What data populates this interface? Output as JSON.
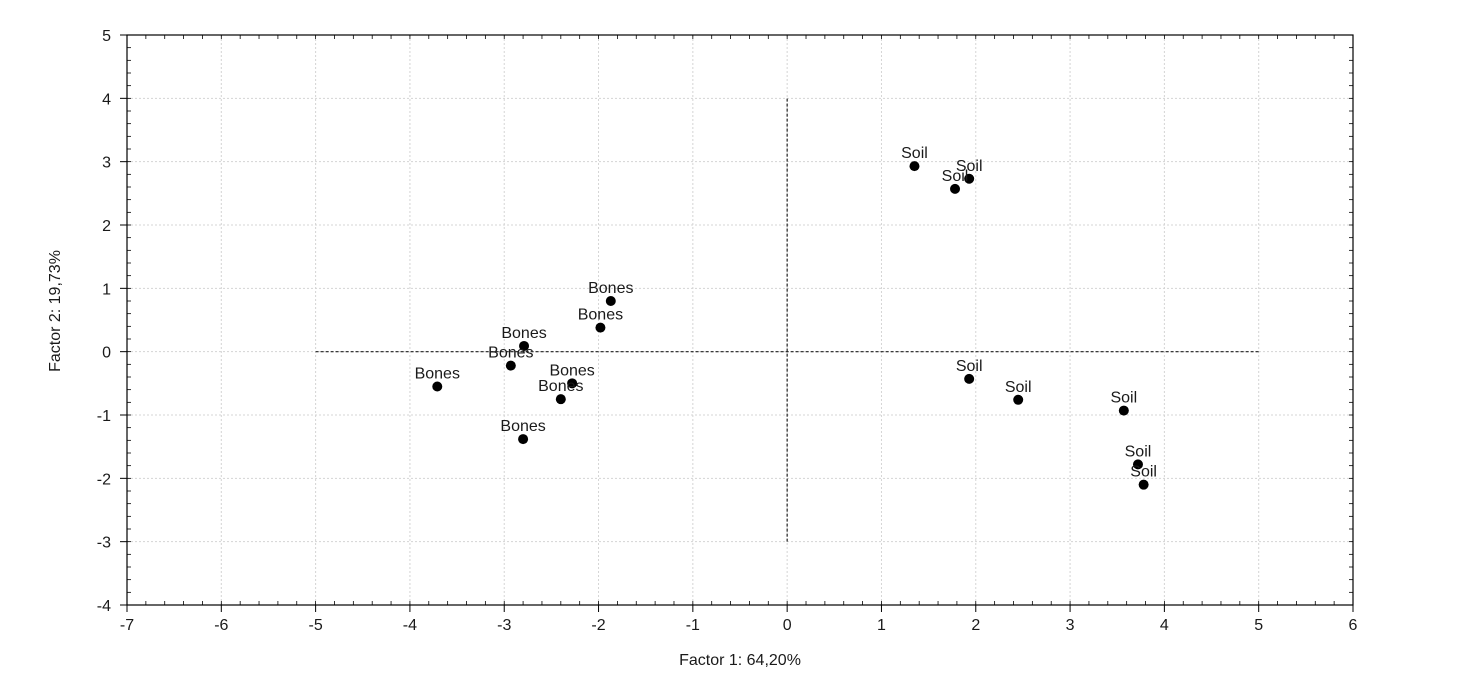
{
  "chart_data": {
    "type": "scatter",
    "xlabel": "Factor 1: 64,20%",
    "ylabel": "Factor 2: 19,73%",
    "xlim": [
      -7,
      6
    ],
    "ylim": [
      -4,
      5
    ],
    "x_ticks": [
      "-7",
      "-6",
      "-5",
      "-4",
      "-3",
      "-2",
      "-1",
      "0",
      "1",
      "2",
      "3",
      "4",
      "5",
      "6"
    ],
    "y_ticks": [
      "5",
      "4",
      "3",
      "2",
      "1",
      "0",
      "-1",
      "-2",
      "-3",
      "-4"
    ],
    "grid": true,
    "point_color": "#000000",
    "reference_lines": [
      {
        "orientation": "horizontal",
        "y": 0,
        "x_from": -5,
        "x_to": 5,
        "style": "dashed"
      },
      {
        "orientation": "vertical",
        "x": 0,
        "y_from": -3,
        "y_to": 4,
        "style": "dashed"
      }
    ],
    "points": [
      {
        "label": "Bones",
        "x": -1.87,
        "y": 0.8
      },
      {
        "label": "Bones",
        "x": -1.98,
        "y": 0.38
      },
      {
        "label": "Bones",
        "x": -2.79,
        "y": 0.09
      },
      {
        "label": "Bones",
        "x": -2.93,
        "y": -0.22
      },
      {
        "label": "Bones",
        "x": -3.71,
        "y": -0.55
      },
      {
        "label": "Bones",
        "x": -2.28,
        "y": -0.5
      },
      {
        "label": "Bones",
        "x": -2.4,
        "y": -0.75
      },
      {
        "label": "Bones",
        "x": -2.8,
        "y": -1.38
      },
      {
        "label": "Soil",
        "x": 1.35,
        "y": 2.93
      },
      {
        "label": "Soil",
        "x": 1.93,
        "y": 2.73
      },
      {
        "label": "Soil",
        "x": 1.78,
        "y": 2.57
      },
      {
        "label": "Soil",
        "x": 1.93,
        "y": -0.43
      },
      {
        "label": "Soil",
        "x": 2.45,
        "y": -0.76
      },
      {
        "label": "Soil",
        "x": 3.57,
        "y": -0.93
      },
      {
        "label": "Soil",
        "x": 3.72,
        "y": -1.78
      },
      {
        "label": "Soil",
        "x": 3.78,
        "y": -2.1
      }
    ]
  }
}
